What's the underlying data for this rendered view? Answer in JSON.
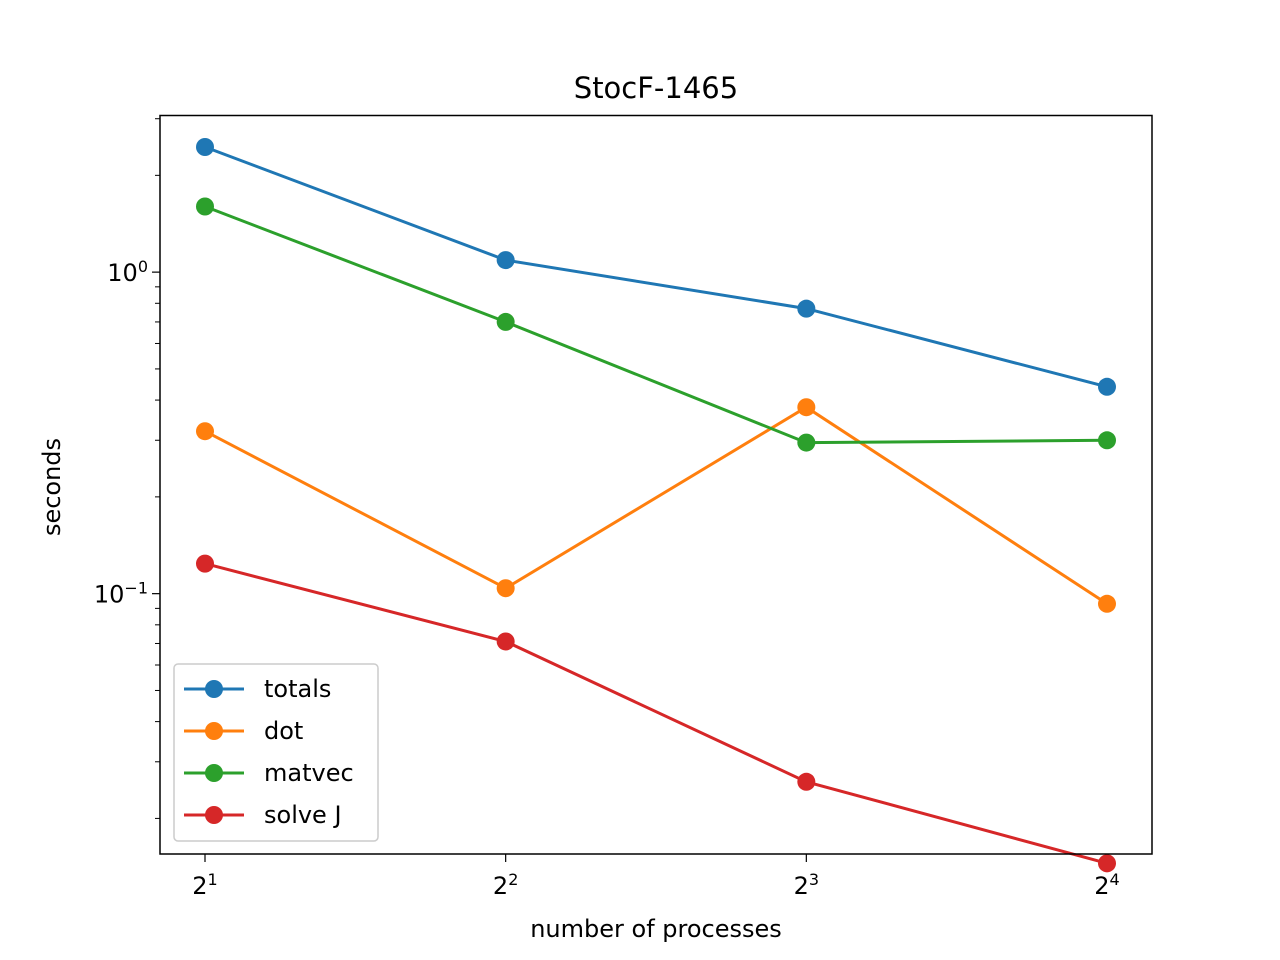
{
  "chart_data": {
    "type": "line",
    "title": "StocF-1465",
    "xlabel": "number of processes",
    "ylabel": "seconds",
    "xscale": "log2",
    "yscale": "log10",
    "x": [
      2,
      4,
      8,
      16
    ],
    "xticks": [
      {
        "base": "2",
        "exp": "1"
      },
      {
        "base": "2",
        "exp": "2"
      },
      {
        "base": "2",
        "exp": "3"
      },
      {
        "base": "2",
        "exp": "4"
      }
    ],
    "yticks": [
      {
        "value": 1,
        "base": "10",
        "exp": "0"
      },
      {
        "value": 0.1,
        "base": "10",
        "exp": "−1"
      }
    ],
    "ylim": [
      0.0155,
      3.07
    ],
    "legend_position": "lower-left",
    "series": [
      {
        "name": "totals",
        "color": "#1f77b4",
        "values": [
          2.45,
          1.09,
          0.77,
          0.44
        ]
      },
      {
        "name": "dot",
        "color": "#ff7f0e",
        "values": [
          0.32,
          0.104,
          0.38,
          0.093
        ]
      },
      {
        "name": "matvec",
        "color": "#2ca02c",
        "values": [
          1.6,
          0.7,
          0.295,
          0.3
        ]
      },
      {
        "name": "solve J",
        "color": "#d62728",
        "values": [
          0.124,
          0.071,
          0.026,
          0.0145
        ]
      }
    ]
  }
}
